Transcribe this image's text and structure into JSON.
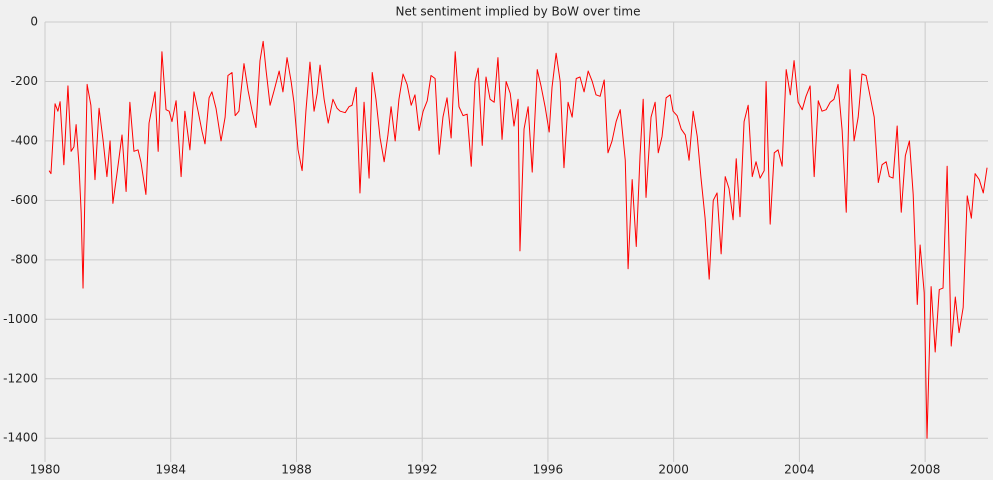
{
  "chart_data": {
    "type": "line",
    "title": "Net sentiment implied by BoW over time",
    "x": [
      1980.13,
      1980.19,
      1980.32,
      1980.41,
      1980.48,
      1980.6,
      1980.73,
      1980.83,
      1980.92,
      1980.99,
      1981.08,
      1981.15,
      1981.21,
      1981.34,
      1981.46,
      1981.59,
      1981.72,
      1981.85,
      1981.97,
      1982.07,
      1982.16,
      1982.29,
      1982.45,
      1982.58,
      1982.7,
      1982.83,
      1982.96,
      1983.05,
      1983.21,
      1983.31,
      1983.5,
      1983.6,
      1983.72,
      1983.85,
      1983.95,
      1984.04,
      1984.17,
      1984.33,
      1984.45,
      1984.61,
      1984.74,
      1984.87,
      1985.0,
      1985.09,
      1985.22,
      1985.31,
      1985.44,
      1985.6,
      1985.73,
      1985.82,
      1985.95,
      1986.05,
      1986.17,
      1986.33,
      1986.46,
      1986.59,
      1986.71,
      1986.84,
      1986.94,
      1987.03,
      1987.16,
      1987.29,
      1987.45,
      1987.57,
      1987.7,
      1987.83,
      1987.92,
      1988.05,
      1988.18,
      1988.3,
      1988.43,
      1988.56,
      1988.66,
      1988.75,
      1988.88,
      1989.01,
      1989.16,
      1989.29,
      1989.39,
      1989.55,
      1989.67,
      1989.77,
      1989.9,
      1990.02,
      1990.15,
      1990.31,
      1990.41,
      1990.53,
      1990.66,
      1990.79,
      1990.91,
      1991.01,
      1991.14,
      1991.26,
      1991.39,
      1991.52,
      1991.65,
      1991.77,
      1991.9,
      1992.03,
      1992.16,
      1992.28,
      1992.41,
      1992.54,
      1992.66,
      1992.79,
      1992.92,
      1993.05,
      1993.17,
      1993.3,
      1993.43,
      1993.56,
      1993.68,
      1993.78,
      1993.91,
      1994.03,
      1994.16,
      1994.29,
      1994.41,
      1994.54,
      1994.67,
      1994.8,
      1994.92,
      1995.05,
      1995.11,
      1995.24,
      1995.37,
      1995.5,
      1995.66,
      1995.78,
      1995.91,
      1996.04,
      1996.13,
      1996.26,
      1996.39,
      1996.51,
      1996.64,
      1996.77,
      1996.9,
      1997.02,
      1997.15,
      1997.28,
      1997.41,
      1997.53,
      1997.66,
      1997.79,
      1997.91,
      1998.04,
      1998.17,
      1998.3,
      1998.46,
      1998.55,
      1998.68,
      1998.81,
      1998.93,
      1999.03,
      1999.12,
      1999.28,
      1999.41,
      1999.51,
      1999.63,
      1999.76,
      1999.89,
      1999.98,
      2000.11,
      2000.24,
      2000.37,
      2000.49,
      2000.62,
      2000.75,
      2000.87,
      2001.0,
      2001.13,
      2001.26,
      2001.38,
      2001.51,
      2001.64,
      2001.76,
      2001.89,
      2001.99,
      2002.11,
      2002.24,
      2002.37,
      2002.5,
      2002.62,
      2002.75,
      2002.88,
      2002.94,
      2003.07,
      2003.2,
      2003.32,
      2003.45,
      2003.58,
      2003.71,
      2003.83,
      2003.96,
      2004.09,
      2004.21,
      2004.34,
      2004.47,
      2004.6,
      2004.72,
      2004.85,
      2004.98,
      2005.1,
      2005.23,
      2005.36,
      2005.49,
      2005.61,
      2005.74,
      2005.87,
      2005.99,
      2006.12,
      2006.25,
      2006.38,
      2006.51,
      2006.63,
      2006.76,
      2006.86,
      2006.98,
      2007.11,
      2007.24,
      2007.37,
      2007.5,
      2007.62,
      2007.75,
      2007.84,
      2007.97,
      2008.06,
      2008.19,
      2008.32,
      2008.45,
      2008.57,
      2008.7,
      2008.83,
      2008.96,
      2009.08,
      2009.21,
      2009.34,
      2009.47,
      2009.59,
      2009.72,
      2009.85,
      2009.97
    ],
    "values": [
      -500,
      -510,
      -275,
      -300,
      -268,
      -480,
      -215,
      -435,
      -420,
      -345,
      -480,
      -640,
      -895,
      -210,
      -280,
      -530,
      -290,
      -400,
      -520,
      -400,
      -610,
      -510,
      -380,
      -570,
      -270,
      -435,
      -430,
      -470,
      -580,
      -340,
      -235,
      -435,
      -100,
      -295,
      -300,
      -335,
      -265,
      -520,
      -300,
      -430,
      -235,
      -300,
      -370,
      -410,
      -255,
      -235,
      -290,
      -400,
      -320,
      -180,
      -170,
      -315,
      -300,
      -140,
      -230,
      -300,
      -355,
      -130,
      -65,
      -160,
      -280,
      -230,
      -165,
      -235,
      -120,
      -200,
      -270,
      -430,
      -500,
      -300,
      -135,
      -300,
      -240,
      -145,
      -260,
      -340,
      -260,
      -290,
      -300,
      -305,
      -285,
      -280,
      -220,
      -575,
      -270,
      -525,
      -170,
      -260,
      -390,
      -470,
      -380,
      -285,
      -400,
      -260,
      -175,
      -210,
      -280,
      -245,
      -365,
      -300,
      -265,
      -180,
      -190,
      -445,
      -320,
      -255,
      -390,
      -100,
      -285,
      -315,
      -310,
      -485,
      -200,
      -155,
      -415,
      -185,
      -260,
      -270,
      -120,
      -395,
      -200,
      -240,
      -350,
      -260,
      -770,
      -360,
      -285,
      -505,
      -160,
      -215,
      -285,
      -370,
      -220,
      -105,
      -200,
      -490,
      -270,
      -320,
      -190,
      -185,
      -235,
      -165,
      -200,
      -245,
      -250,
      -195,
      -440,
      -400,
      -335,
      -295,
      -465,
      -830,
      -530,
      -755,
      -450,
      -260,
      -590,
      -320,
      -270,
      -440,
      -385,
      -255,
      -245,
      -300,
      -315,
      -360,
      -380,
      -465,
      -300,
      -385,
      -525,
      -660,
      -865,
      -600,
      -575,
      -780,
      -520,
      -560,
      -665,
      -460,
      -655,
      -335,
      -280,
      -520,
      -470,
      -525,
      -500,
      -200,
      -680,
      -440,
      -430,
      -485,
      -160,
      -245,
      -130,
      -270,
      -295,
      -250,
      -215,
      -520,
      -265,
      -300,
      -295,
      -270,
      -260,
      -210,
      -365,
      -640,
      -160,
      -400,
      -320,
      -175,
      -180,
      -250,
      -320,
      -540,
      -480,
      -470,
      -520,
      -525,
      -350,
      -640,
      -450,
      -400,
      -580,
      -950,
      -750,
      -910,
      -1400,
      -890,
      -1110,
      -900,
      -895,
      -485,
      -1090,
      -925,
      -1045,
      -960,
      -585,
      -660,
      -510,
      -530,
      -575,
      -490
    ],
    "color": "#ff0000",
    "xlim": [
      1980,
      2010
    ],
    "xticks": [
      1980,
      1984,
      1988,
      1992,
      1996,
      2000,
      2004,
      2008
    ],
    "ylim": [
      -1480,
      0
    ],
    "yticks": [
      0,
      -200,
      -400,
      -600,
      -800,
      -1000,
      -1200,
      -1400
    ],
    "grid": true
  }
}
